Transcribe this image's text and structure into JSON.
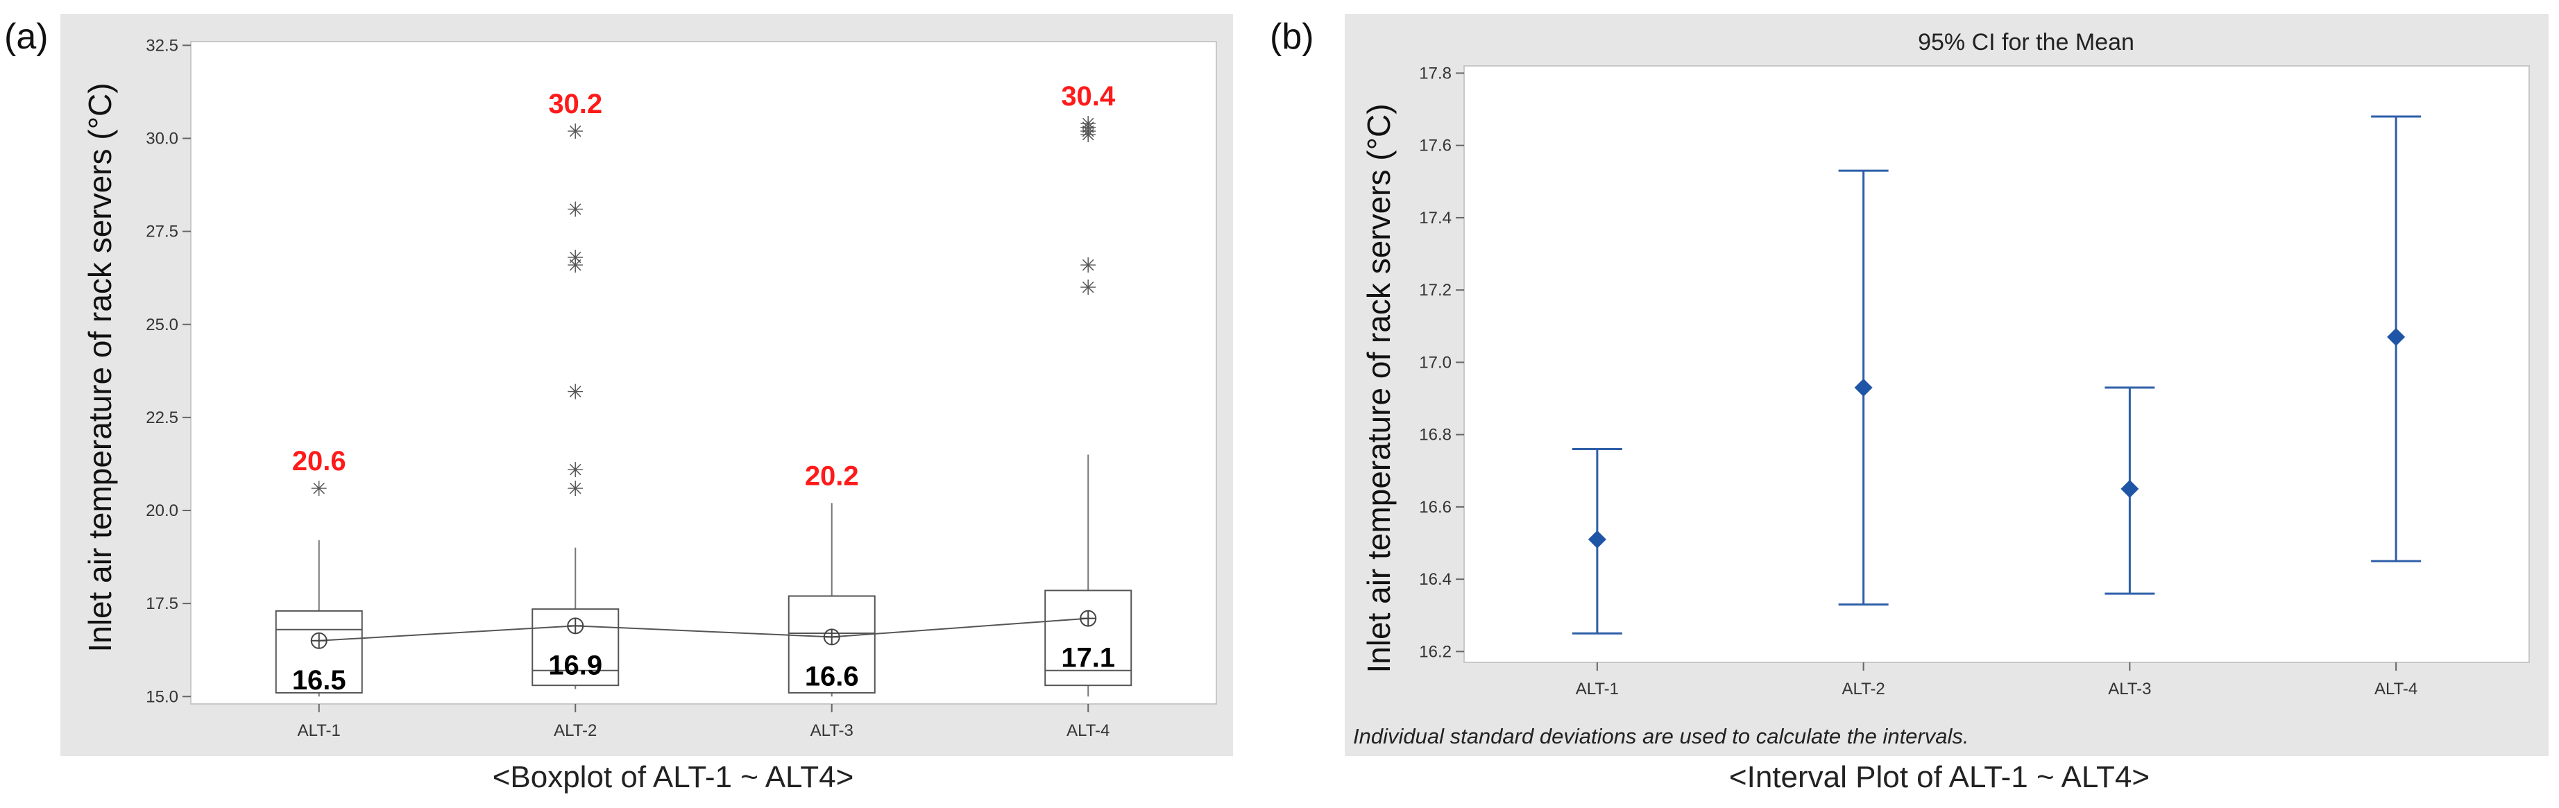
{
  "panels": {
    "a": {
      "label": "(a)",
      "caption": "<Boxplot of ALT-1 ~ ALT4>",
      "ylabel": "Inlet air temperature of rack servers (°C)"
    },
    "b": {
      "label": "(b)",
      "caption": "<Interval Plot of ALT-1 ~ ALT4>",
      "ylabel": "Inlet air temperature of rack servers (°C)",
      "title": "95% CI for the Mean",
      "note": "Individual standard deviations are used to calculate the intervals."
    }
  },
  "chart_data": [
    {
      "type": "box",
      "title": "",
      "xlabel": "",
      "ylabel": "Inlet air temperature of rack servers (°C)",
      "ylim": [
        14.8,
        32.6
      ],
      "yticks": [
        15.0,
        17.5,
        20.0,
        22.5,
        25.0,
        27.5,
        30.0,
        32.5
      ],
      "ytick_labels": [
        "15.0",
        "17.5",
        "20.0",
        "22.5",
        "25.0",
        "27.5",
        "30.0",
        "32.5"
      ],
      "categories": [
        "ALT-1",
        "ALT-2",
        "ALT-3",
        "ALT-4"
      ],
      "boxes": [
        {
          "name": "ALT-1",
          "whisker_low": 15.0,
          "q1": 15.1,
          "median": 16.8,
          "q3": 17.3,
          "whisker_high": 19.2,
          "mean": 16.5,
          "outliers": [
            20.6
          ],
          "max_label": "20.6",
          "mean_label": "16.5"
        },
        {
          "name": "ALT-2",
          "whisker_low": 15.2,
          "q1": 15.3,
          "median": 15.7,
          "q3": 17.35,
          "whisker_high": 19.0,
          "mean": 16.9,
          "outliers": [
            20.6,
            21.1,
            23.2,
            26.6,
            26.8,
            28.1,
            30.2
          ],
          "max_label": "30.2",
          "mean_label": "16.9"
        },
        {
          "name": "ALT-3",
          "whisker_low": 15.0,
          "q1": 15.1,
          "median": 16.7,
          "q3": 17.7,
          "whisker_high": 20.2,
          "mean": 16.6,
          "outliers": [],
          "max_label": "20.2",
          "mean_label": "16.6"
        },
        {
          "name": "ALT-4",
          "whisker_low": 15.0,
          "q1": 15.3,
          "median": 15.7,
          "q3": 17.85,
          "whisker_high": 21.5,
          "mean": 17.1,
          "outliers": [
            26.0,
            26.6,
            30.1,
            30.2,
            30.3,
            30.4
          ],
          "max_label": "30.4",
          "mean_label": "17.1"
        }
      ],
      "mean_connect_line": true
    },
    {
      "type": "interval",
      "title": "95% CI for the Mean",
      "xlabel": "",
      "ylabel": "Inlet air temperature of rack servers (°C)",
      "ylim": [
        16.17,
        17.82
      ],
      "yticks": [
        16.2,
        16.4,
        16.6,
        16.8,
        17.0,
        17.2,
        17.4,
        17.6,
        17.8
      ],
      "ytick_labels": [
        "16.2",
        "16.4",
        "16.6",
        "16.8",
        "17.0",
        "17.2",
        "17.4",
        "17.6",
        "17.8"
      ],
      "categories": [
        "ALT-1",
        "ALT-2",
        "ALT-3",
        "ALT-4"
      ],
      "series": [
        {
          "name": "ALT-1",
          "mean": 16.51,
          "lower": 16.25,
          "upper": 16.76
        },
        {
          "name": "ALT-2",
          "mean": 16.93,
          "lower": 16.33,
          "upper": 17.53
        },
        {
          "name": "ALT-3",
          "mean": 16.65,
          "lower": 16.36,
          "upper": 16.93
        },
        {
          "name": "ALT-4",
          "mean": 17.07,
          "lower": 16.45,
          "upper": 17.68
        }
      ],
      "color": "#2e5fa8",
      "point_color": "#1f55a6"
    }
  ]
}
